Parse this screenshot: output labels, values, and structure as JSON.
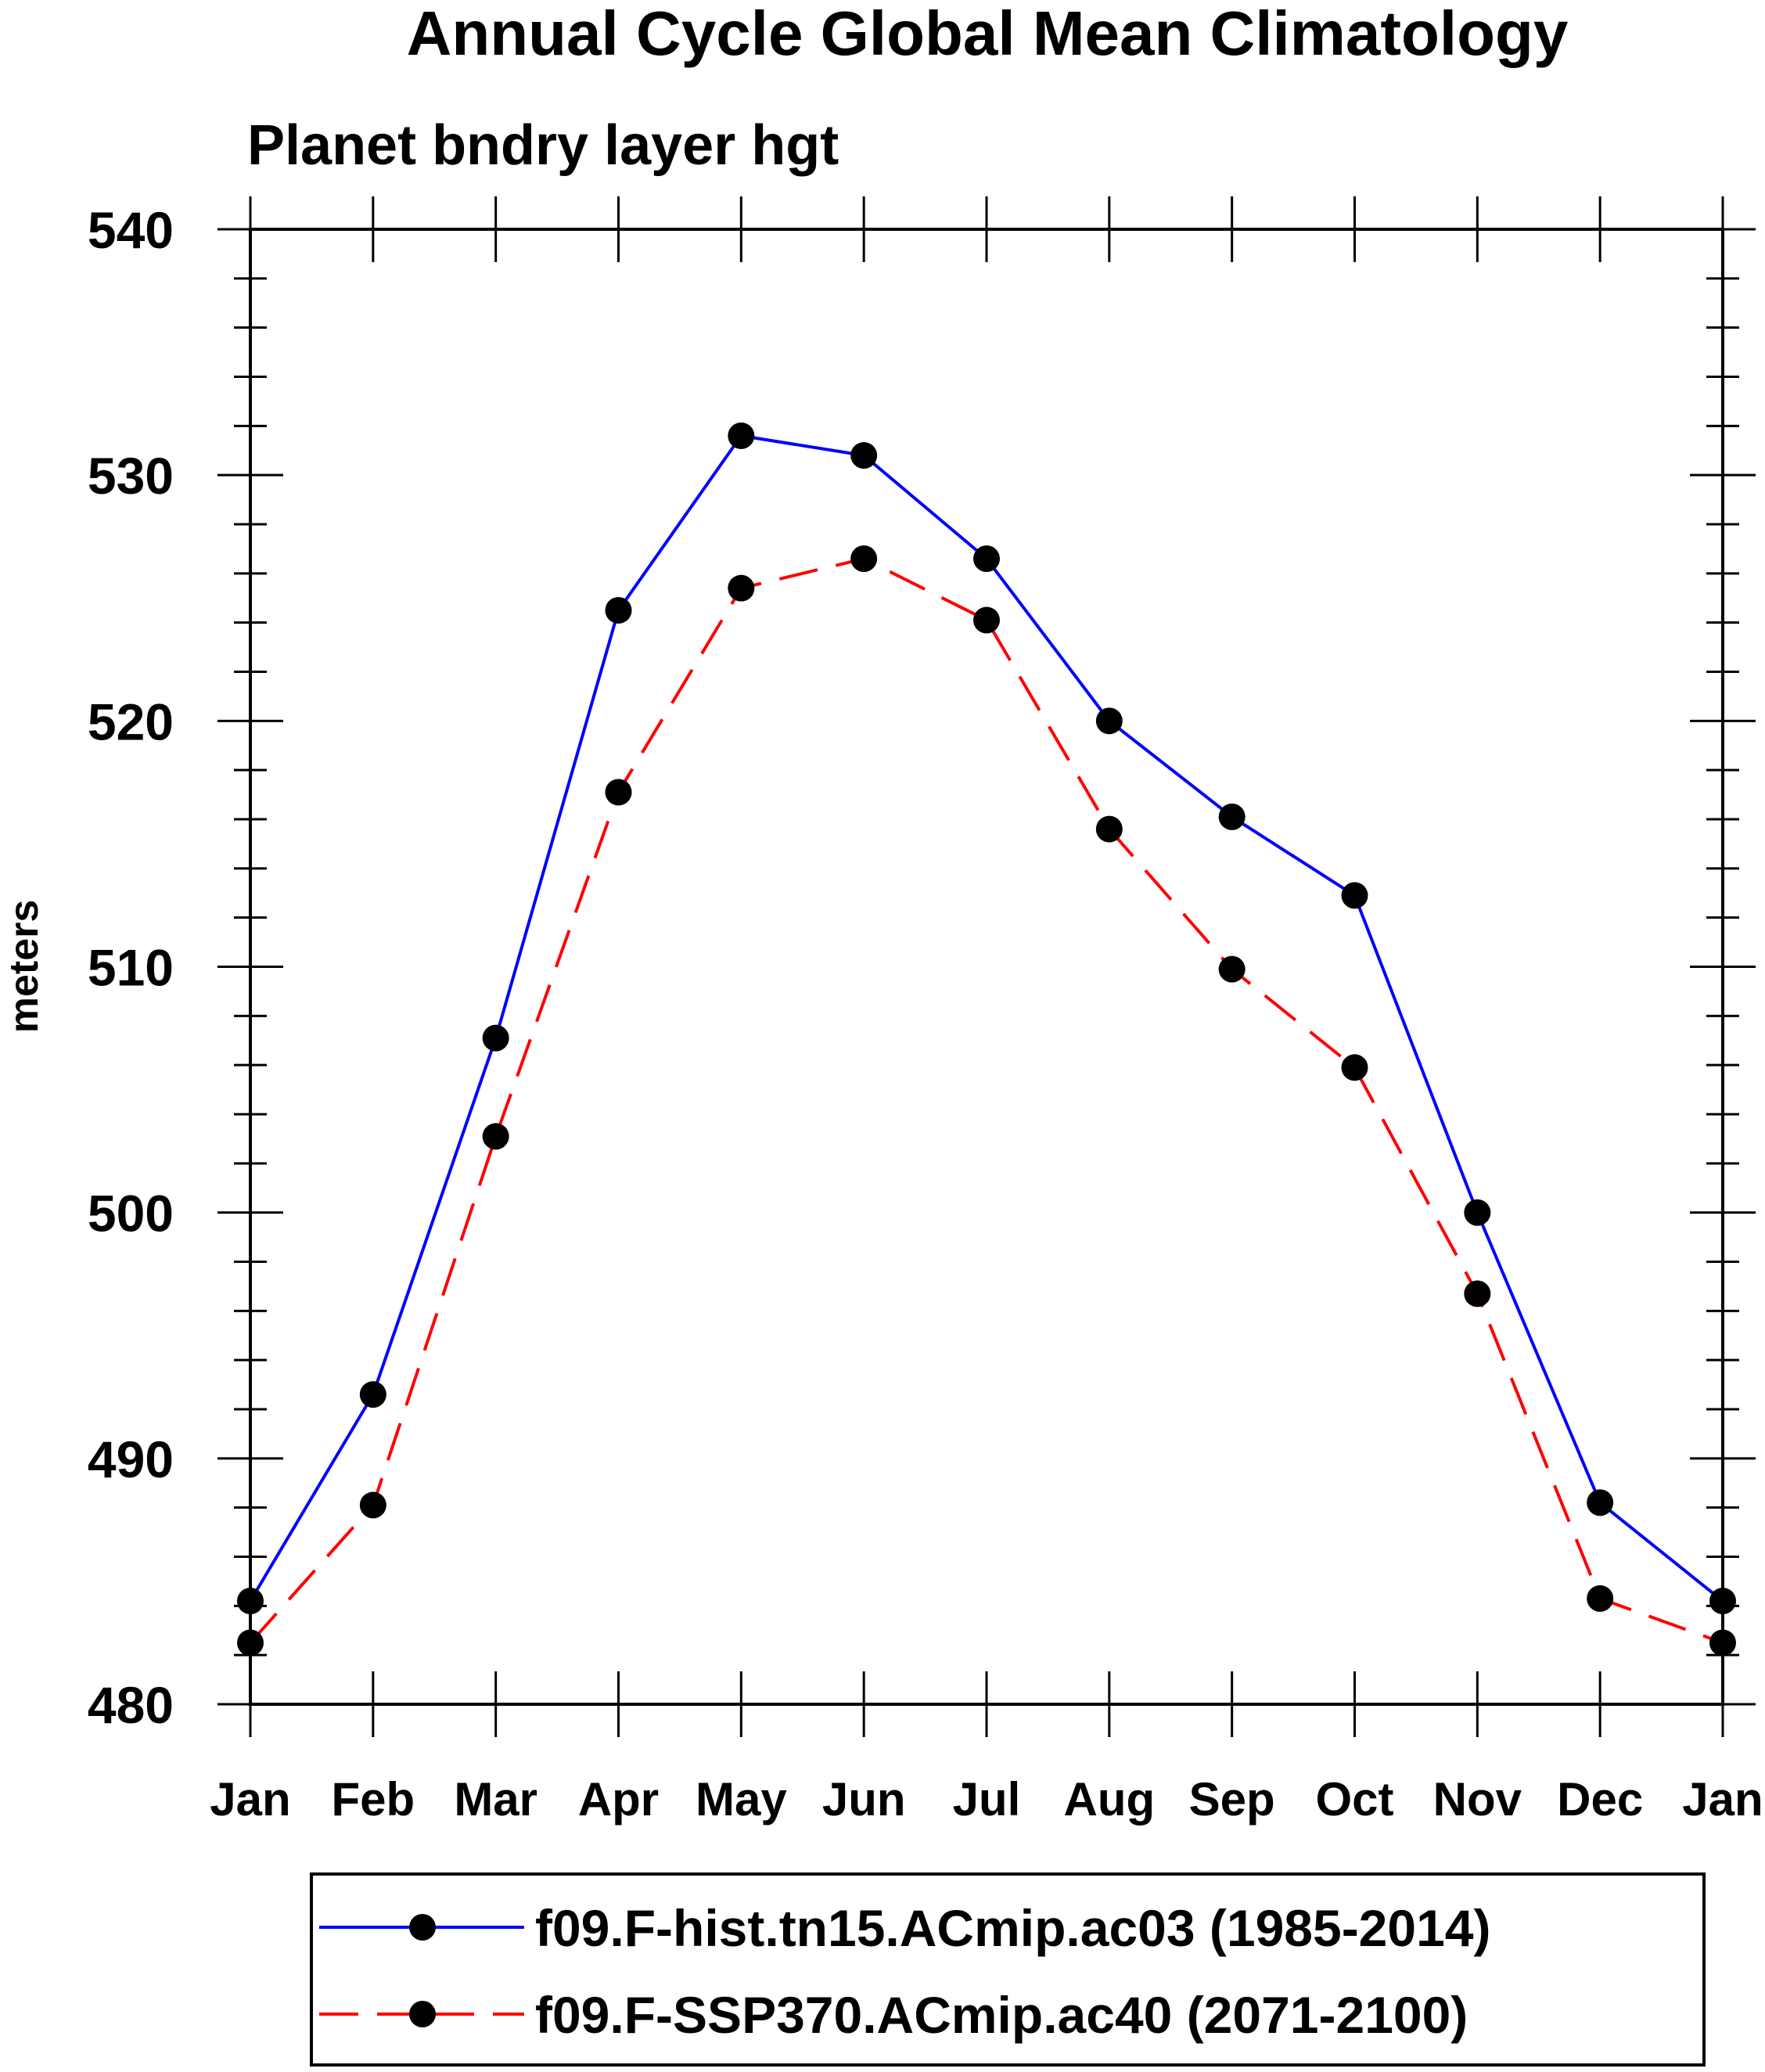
{
  "chart_data": {
    "type": "line",
    "title": "Annual Cycle Global Mean Climatology",
    "subtitle": "Planet bndry layer hgt",
    "xlabel": "",
    "ylabel": "meters",
    "categories": [
      "Jan",
      "Feb",
      "Mar",
      "Apr",
      "May",
      "Jun",
      "Jul",
      "Aug",
      "Sep",
      "Oct",
      "Nov",
      "Dec",
      "Jan"
    ],
    "ylim": [
      480,
      540
    ],
    "yticks": [
      480,
      490,
      500,
      510,
      520,
      530,
      540
    ],
    "y_minor_step": 2,
    "grid": false,
    "legend_position": "bottom",
    "series": [
      {
        "name": "f09.F-hist.tn15.ACmip.ac03 (1985-2014)",
        "color": "#0000ff",
        "dash": "solid",
        "marker": "filled-circle",
        "values": [
          484.2,
          492.6,
          507.1,
          524.5,
          531.6,
          530.8,
          526.6,
          520.0,
          516.1,
          512.9,
          500.0,
          488.2,
          484.2
        ]
      },
      {
        "name": "f09.F-SSP370.ACmip.ac40 (2071-2100)",
        "color": "#ff0000",
        "dash": "dashed",
        "marker": "filled-circle",
        "values": [
          482.5,
          488.1,
          503.1,
          517.1,
          525.4,
          526.6,
          524.1,
          515.6,
          509.9,
          505.9,
          496.7,
          484.3,
          482.5
        ]
      }
    ]
  }
}
